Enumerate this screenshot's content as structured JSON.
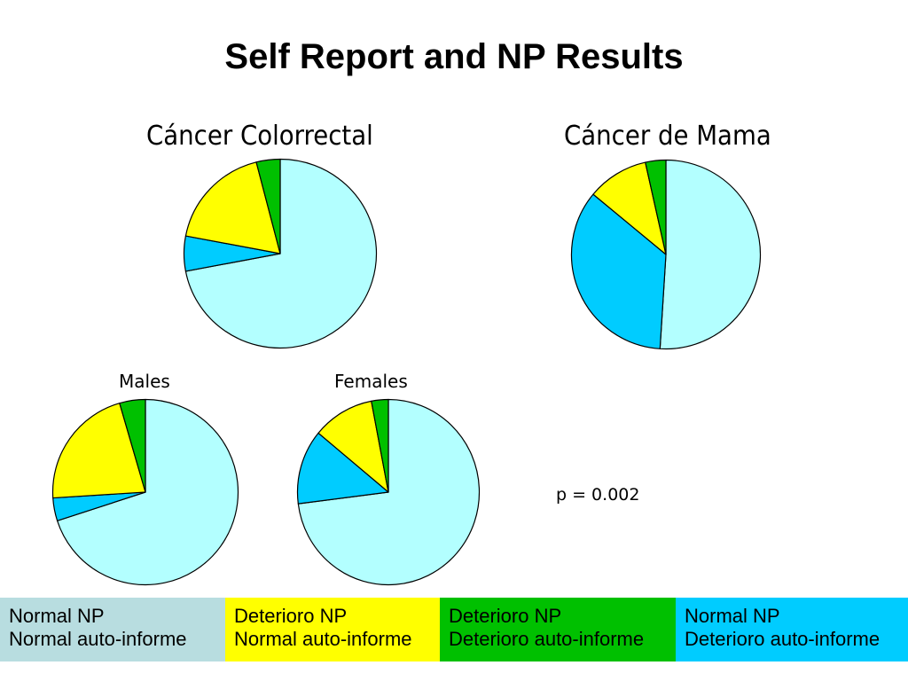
{
  "page": {
    "title": "Self Report and NP Results",
    "p_value": "p = 0.002"
  },
  "colors": {
    "normal_np_normal_self": "#b3ffff",
    "deterioro_np_normal_self": "#ffff00",
    "deterioro_np_deterioro_self": "#00c000",
    "normal_np_deterioro_self": "#00ccff",
    "legend_bg_1": "#b8dde0"
  },
  "legend": [
    {
      "line1": "Normal NP",
      "line2": "Normal auto-informe",
      "color": "#b8dde0"
    },
    {
      "line1": "Deterioro NP",
      "line2": "Normal auto-informe",
      "color": "#ffff00"
    },
    {
      "line1": "Deterioro NP",
      "line2": "Deterioro auto-informe",
      "color": "#00c000"
    },
    {
      "line1": "Normal NP",
      "line2": "Deterioro auto-informe",
      "color": "#00ccff"
    }
  ],
  "chart_data": [
    {
      "type": "pie",
      "title": "Cáncer Colorrectal",
      "categories": [
        "Normal NP / Normal auto-informe",
        "Normal NP / Deterioro auto-informe",
        "Deterioro NP / Normal auto-informe",
        "Deterioro NP / Deterioro auto-informe"
      ],
      "values": [
        72,
        6,
        18,
        4
      ]
    },
    {
      "type": "pie",
      "title": "Cáncer de Mama",
      "categories": [
        "Normal NP / Normal auto-informe",
        "Normal NP / Deterioro auto-informe",
        "Deterioro NP / Normal auto-informe",
        "Deterioro NP / Deterioro auto-informe"
      ],
      "values": [
        51,
        35,
        10.5,
        3.5
      ]
    },
    {
      "type": "pie",
      "title": "Males",
      "categories": [
        "Normal NP / Normal auto-informe",
        "Normal NP / Deterioro auto-informe",
        "Deterioro NP / Normal auto-informe",
        "Deterioro NP / Deterioro auto-informe"
      ],
      "values": [
        70,
        4,
        21.5,
        4.5
      ]
    },
    {
      "type": "pie",
      "title": "Females",
      "categories": [
        "Normal NP / Normal auto-informe",
        "Normal NP / Deterioro auto-informe",
        "Deterioro NP / Normal auto-informe",
        "Deterioro NP / Deterioro auto-informe"
      ],
      "values": [
        73,
        13,
        11,
        3
      ]
    }
  ]
}
